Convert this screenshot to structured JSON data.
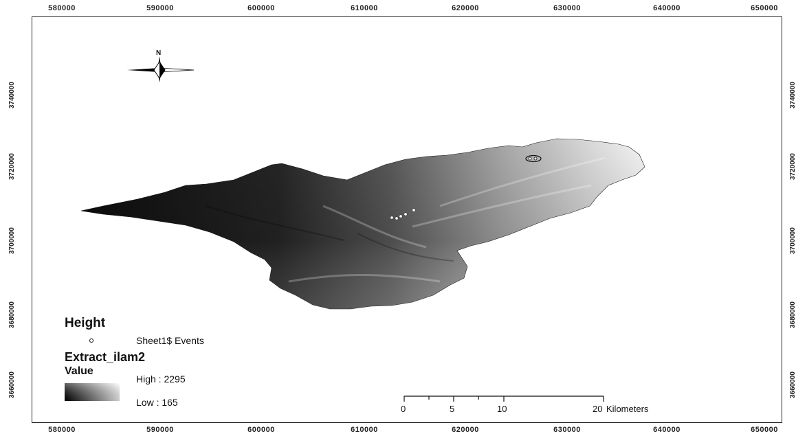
{
  "x_ticks": [
    "580000",
    "590000",
    "600000",
    "610000",
    "620000",
    "630000",
    "640000",
    "650000"
  ],
  "y_ticks": [
    "3740000",
    "3720000",
    "3700000",
    "3680000",
    "3660000"
  ],
  "north_arrow": {
    "label": "N",
    "icon": "north-arrow-icon"
  },
  "legend": {
    "height_title": "Height",
    "events_label": "Sheet1$ Events",
    "layer_title": "Extract_ilam2",
    "value_title": "Value",
    "high_label": "High : 2295",
    "low_label": "Low : 165"
  },
  "scale_bar": {
    "ticks": [
      "0",
      "5",
      "10",
      "20"
    ],
    "unit": "Kilometers"
  },
  "colors": {
    "dem_low": "#111111",
    "dem_high": "#ffffff",
    "frame": "#222222"
  }
}
